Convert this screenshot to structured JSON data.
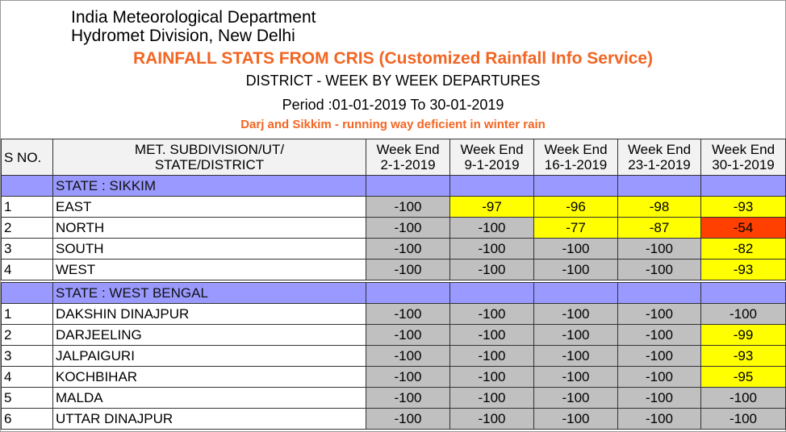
{
  "header": {
    "org_line1": "India Meteorological Department",
    "org_line2": "Hydromet Division, New Delhi",
    "title": "RAINFALL STATS FROM CRIS (Customized Rainfall Info Service)",
    "subtitle": "DISTRICT - WEEK BY WEEK DEPARTURES",
    "period": "Period :01-01-2019 To 30-01-2019",
    "note": "Darj and Sikkim - running way deficient in winter rain"
  },
  "colors": {
    "no_rain": "#c0c0c0",
    "large_deficient": "#ffff00",
    "deficient": "#ff4000",
    "state_row": "#9999ff",
    "title": "#f26522"
  },
  "table": {
    "columns": [
      "S NO.",
      "MET. SUBDIVISION/UT/\nSTATE/DISTRICT",
      "Week End\n2-1-2019",
      "Week End\n9-1-2019",
      "Week End\n16-1-2019",
      "Week End\n23-1-2019",
      "Week End\n30-1-2019"
    ],
    "sections": [
      {
        "state": "STATE : SIKKIM",
        "rows": [
          {
            "sno": "1",
            "name": "EAST",
            "values": [
              -100,
              -97,
              -96,
              -98,
              -93
            ]
          },
          {
            "sno": "2",
            "name": "NORTH",
            "values": [
              -100,
              -100,
              -77,
              -87,
              -54
            ]
          },
          {
            "sno": "3",
            "name": "SOUTH",
            "values": [
              -100,
              -100,
              -100,
              -100,
              -82
            ]
          },
          {
            "sno": "4",
            "name": "WEST",
            "values": [
              -100,
              -100,
              -100,
              -100,
              -93
            ]
          }
        ]
      },
      {
        "state": "STATE : WEST BENGAL",
        "rows": [
          {
            "sno": "1",
            "name": "DAKSHIN DINAJPUR",
            "values": [
              -100,
              -100,
              -100,
              -100,
              -100
            ]
          },
          {
            "sno": "2",
            "name": "DARJEELING",
            "values": [
              -100,
              -100,
              -100,
              -100,
              -99
            ]
          },
          {
            "sno": "3",
            "name": "JALPAIGURI",
            "values": [
              -100,
              -100,
              -100,
              -100,
              -93
            ]
          },
          {
            "sno": "4",
            "name": "KOCHBIHAR",
            "values": [
              -100,
              -100,
              -100,
              -100,
              -95
            ]
          },
          {
            "sno": "5",
            "name": "MALDA",
            "values": [
              -100,
              -100,
              -100,
              -100,
              -100
            ]
          },
          {
            "sno": "6",
            "name": "UTTAR  DINAJPUR",
            "values": [
              -100,
              -100,
              -100,
              -100,
              -100
            ]
          }
        ]
      }
    ]
  }
}
